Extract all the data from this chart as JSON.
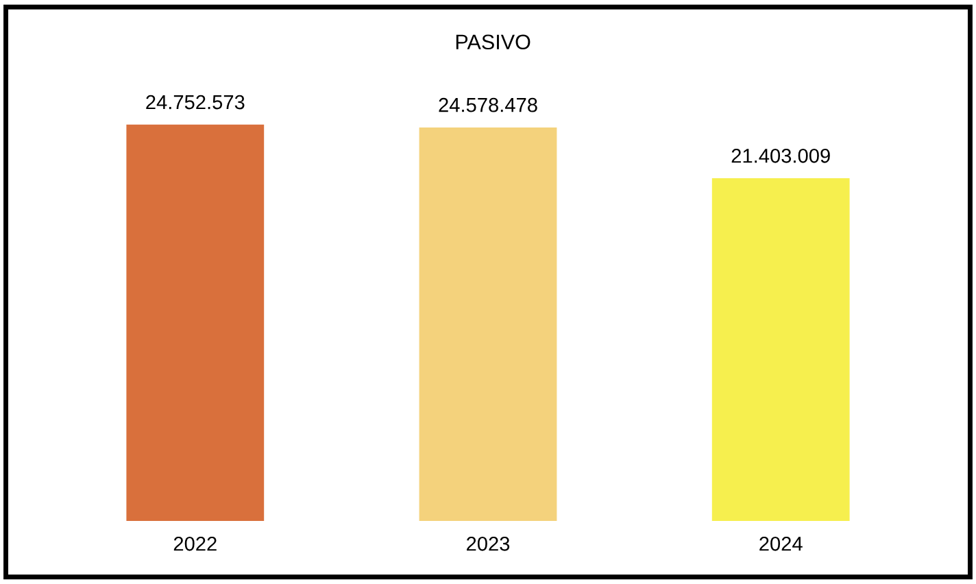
{
  "chart_data": {
    "type": "bar",
    "title": "PASIVO",
    "categories": [
      "2022",
      "2023",
      "2024"
    ],
    "values": [
      24752573,
      24578478,
      21403009
    ],
    "colors": [
      "#d9703c",
      "#f4d27c",
      "#f6ef4e"
    ],
    "value_labels": [
      "24.752.573",
      "24.578.478",
      "21.403.009"
    ],
    "tick_labels": "x",
    "grid": false,
    "legend": false
  }
}
